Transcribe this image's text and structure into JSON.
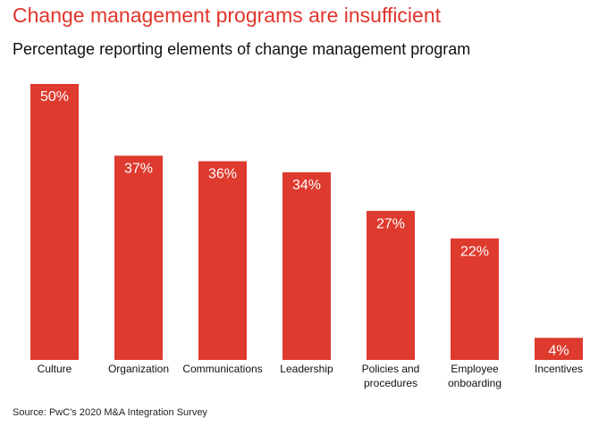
{
  "chart_data": {
    "type": "bar",
    "title": "Change management programs are insufficient",
    "subtitle": "Percentage reporting elements of change management program",
    "source": "Source: PwC's 2020 M&A Integration Survey",
    "categories": [
      "Culture",
      "Organization",
      "Communications",
      "Leadership",
      "Policies and\nprocedures",
      "Employee\nonboarding",
      "Incentives"
    ],
    "values": [
      50,
      37,
      36,
      34,
      27,
      22,
      4
    ],
    "value_labels": [
      "50%",
      "37%",
      "36%",
      "34%",
      "27%",
      "22%",
      "4%"
    ],
    "color": "#de3a2e",
    "ylim": [
      0,
      50
    ]
  }
}
